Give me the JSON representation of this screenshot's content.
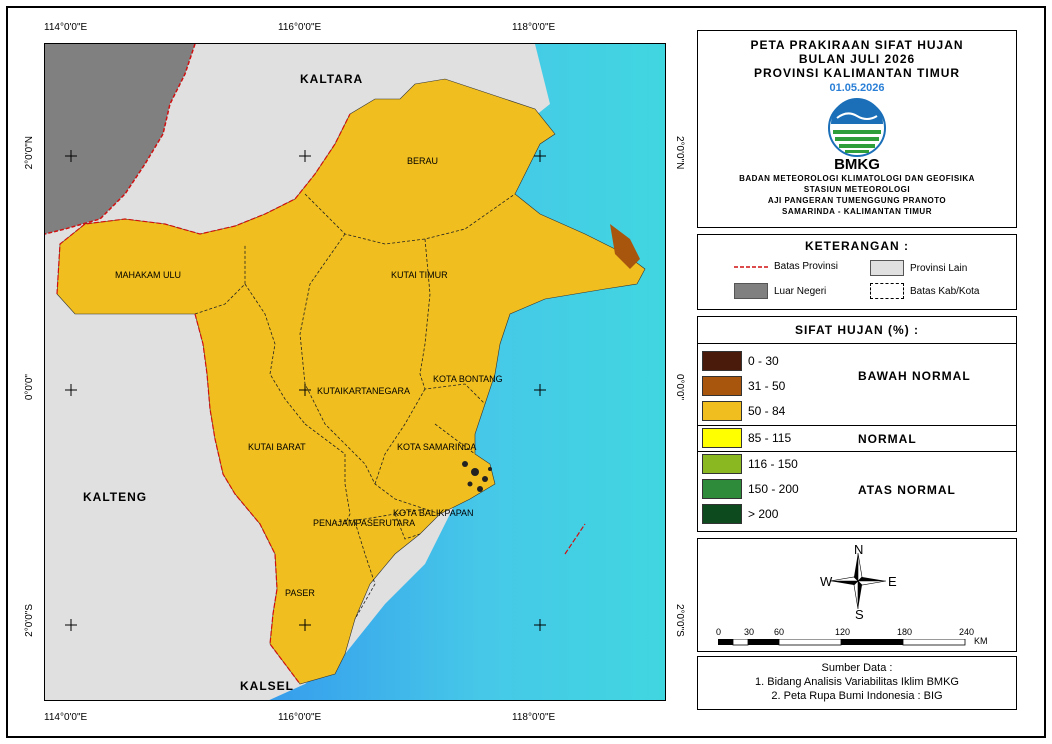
{
  "coords": {
    "top": [
      "114°0'0\"E",
      "116°0'0\"E",
      "118°0'0\"E"
    ],
    "bottom": [
      "114°0'0\"E",
      "116°0'0\"E",
      "118°0'0\"E"
    ],
    "left": [
      "2°0'0\"N",
      "0°0'0\"",
      "2°0'0\"S"
    ],
    "right": [
      "2°0'0\"N",
      "0°0'0\"",
      "2°0'0\"S"
    ]
  },
  "map_labels": {
    "kaltara": "KALTARA",
    "kalteng": "KALTENG",
    "kalsel": "KALSEL",
    "berau": "BERAU",
    "mahakam_ulu": "MAHAKAM ULU",
    "kutai_timur": "KUTAI TIMUR",
    "kota_bontang": "KOTA BONTANG",
    "kutai_kartanegara": "KUTAIKARTANEGARA",
    "kutai_barat": "KUTAI BARAT",
    "kota_samarinda": "KOTA SAMARINDA",
    "kota_balikpapan": "KOTA BALIKPAPAN",
    "penajam": "PENAJAMPASERUTARA",
    "paser": "PASER"
  },
  "title": {
    "line1": "PETA PRAKIRAAN SIFAT HUJAN",
    "line2": "BULAN JULI 2026",
    "line3": "PROVINSI KALIMANTAN TIMUR",
    "date": "01.05.2026",
    "logo_text": "BMKG",
    "org1": "BADAN METEOROLOGI KLIMATOLOGI DAN GEOFISIKA",
    "org2": "STASIUN METEOROLOGI",
    "org3": "AJI PANGERAN TUMENGGUNG PRANOTO",
    "org4": "SAMARINDA - KALIMANTAN TIMUR"
  },
  "keterangan": {
    "title": "KETERANGAN :",
    "batas_provinsi": "Batas Provinsi",
    "provinsi_lain": "Provinsi Lain",
    "luar_negeri": "Luar Negeri",
    "batas_kab": "Batas Kab/Kota"
  },
  "sifat_hujan": {
    "title": "SIFAT HUJAN (%) :",
    "classes": [
      {
        "label": "0 - 30",
        "color": "#4a1a0a"
      },
      {
        "label": "31 - 50",
        "color": "#a8560e"
      },
      {
        "label": "50 - 84",
        "color": "#f0be1e"
      },
      {
        "label": "85 - 115",
        "color": "#ffff00"
      },
      {
        "label": "116 - 150",
        "color": "#8ab820"
      },
      {
        "label": "150 - 200",
        "color": "#2e8b3a"
      },
      {
        "label": "> 200",
        "color": "#0d4a1e"
      }
    ],
    "cat_bawah": "BAWAH NORMAL",
    "cat_normal": "NORMAL",
    "cat_atas": "ATAS NORMAL"
  },
  "compass": {
    "n": "N",
    "s": "S",
    "e": "E",
    "w": "W"
  },
  "scale": {
    "ticks": [
      "0",
      "30",
      "60",
      "120",
      "180",
      "240"
    ],
    "unit": "KM"
  },
  "sumber": {
    "title": "Sumber Data :",
    "line1": "1. Bidang Analisis Variabilitas Iklim BMKG",
    "line2": "2. Peta Rupa Bumi Indonesia : BIG"
  },
  "colors": {
    "sea_light": "#48d0e8",
    "sea_dark": "#2a6ee8",
    "other_province": "#e0e0e0",
    "foreign": "#808080",
    "province_fill": "#f0be1e"
  }
}
